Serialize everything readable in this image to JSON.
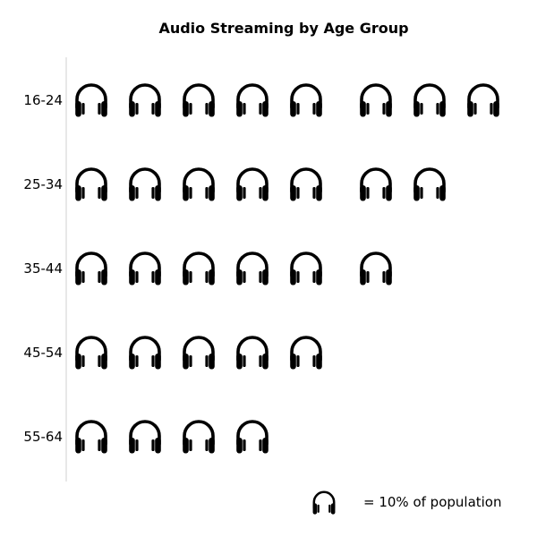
{
  "chart_data": {
    "type": "pictograph",
    "title": "Audio Streaming by Age Group",
    "icon": "headphones-icon",
    "icon_color": "#000000",
    "axis_color": "#d0d0d0",
    "unit_value": 10,
    "categories": [
      "16-24",
      "25-34",
      "35-44",
      "45-54",
      "55-64"
    ],
    "values": [
      80,
      70,
      60,
      50,
      40
    ],
    "icon_counts": [
      8,
      7,
      6,
      5,
      4
    ],
    "legend": {
      "label": "= 10% of population",
      "placement": "bottom-right"
    }
  }
}
